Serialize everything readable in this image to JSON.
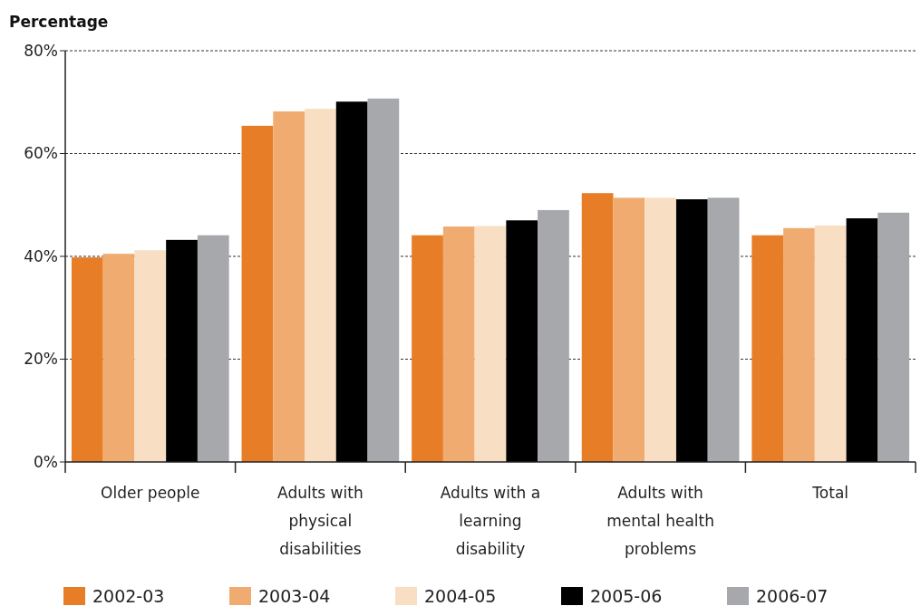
{
  "chart_data": {
    "type": "bar",
    "ylabel": "Percentage",
    "categories": [
      "Older people",
      "Adults with physical disabilities",
      "Adults with a learning disability",
      "Adults with mental health problems",
      "Total"
    ],
    "series": [
      {
        "name": "2002-03",
        "color": "#e87d28",
        "values": [
          39.8,
          65.4,
          44.1,
          52.3,
          44.1
        ]
      },
      {
        "name": "2003-04",
        "color": "#f0ac70",
        "values": [
          40.5,
          68.2,
          45.8,
          51.4,
          45.5
        ]
      },
      {
        "name": "2004-05",
        "color": "#f8dfc4",
        "values": [
          41.2,
          68.7,
          45.9,
          51.4,
          46
        ]
      },
      {
        "name": "2005-06",
        "color": "#000000",
        "values": [
          43.2,
          70.1,
          47,
          51.1,
          47.4
        ]
      },
      {
        "name": "2006-07",
        "color": "#a7a8ac",
        "values": [
          44.1,
          70.7,
          49,
          51.4,
          48.5
        ]
      }
    ],
    "ylim": [
      0,
      80
    ],
    "yticks": [
      {
        "value": 0,
        "label": "0%"
      },
      {
        "value": 20,
        "label": "20%"
      },
      {
        "value": 40,
        "label": "40%"
      },
      {
        "value": 60,
        "label": "60%"
      },
      {
        "value": 80,
        "label": "80%"
      }
    ],
    "grid": "y",
    "legend": "bottom"
  }
}
